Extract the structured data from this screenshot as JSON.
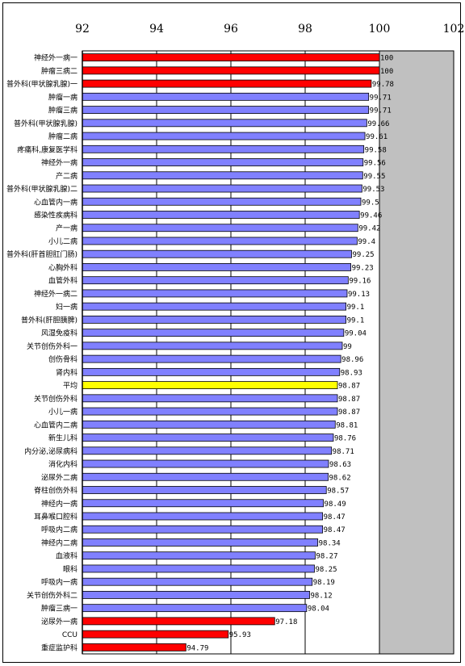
{
  "chart_data": {
    "type": "bar",
    "orientation": "horizontal",
    "title": "",
    "xlabel": "",
    "ylabel": "",
    "xlim": [
      92,
      102
    ],
    "x_ticks": [
      92,
      94,
      96,
      98,
      100,
      102
    ],
    "grid": true,
    "legend": "none",
    "colors": {
      "high_low": "#ff0000",
      "normal": "#8080ff",
      "average": "#ffff00",
      "plot_bg": "#c0c0c0"
    },
    "categories": [
      "神经外一病一",
      "肿瘤三病二",
      "普外科(甲状腺乳腺)一",
      "肿瘤一病",
      "肿瘤三病",
      "普外科(甲状腺乳腺)",
      "肿瘤二病",
      "疼痛科,康复医学科",
      "神经外一病",
      "产二病",
      "普外科(甲状腺乳腺)二",
      "心血管内一病",
      "感染性疾病科",
      "产一病",
      "小儿二病",
      "普外科(肝首胆肛门肠)",
      "心胸外科",
      "血管外科",
      "神经外一病二",
      "妇一病",
      "普外科(肝胆胰脾)",
      "风湿免疫科",
      "关节创伤外科一",
      "创伤骨科",
      "肾内科",
      "平均",
      "关节创伤外科",
      "小儿一病",
      "心血管内二病",
      "新生儿科",
      "内分泌,泌尿病科",
      "消化内科",
      "泌尿外二病",
      "脊柱创伤外科",
      "神经内一病",
      "耳鼻喉口腔科",
      "呼吸内二病",
      "神经内二病",
      "血液科",
      "眼科",
      "呼吸内一病",
      "关节创伤外科二",
      "肿瘤三病一",
      "泌尿外一病",
      "CCU",
      "重症监护科"
    ],
    "values": [
      100,
      100,
      99.78,
      99.71,
      99.71,
      99.66,
      99.61,
      99.58,
      99.56,
      99.55,
      99.53,
      99.5,
      99.46,
      99.42,
      99.4,
      99.25,
      99.23,
      99.16,
      99.13,
      99.1,
      99.1,
      99.04,
      99,
      98.96,
      98.93,
      98.87,
      98.87,
      98.87,
      98.81,
      98.76,
      98.71,
      98.63,
      98.62,
      98.57,
      98.49,
      98.47,
      98.47,
      98.34,
      98.27,
      98.25,
      98.19,
      98.12,
      98.04,
      97.18,
      95.93,
      94.79
    ],
    "value_labels": [
      "100",
      "100",
      "99.78",
      "99.71",
      "99.71",
      "99.66",
      "99.61",
      "99.58",
      "99.56",
      "99.55",
      "99.53",
      "99.5",
      "99.46",
      "99.42",
      "99.4",
      "99.25",
      "99.23",
      "99.16",
      "99.13",
      "99.1",
      "99.1",
      "99.04",
      "99",
      "98.96",
      "98.93",
      "98.87",
      "98.87",
      "98.87",
      "98.81",
      "98.76",
      "98.71",
      "98.63",
      "98.62",
      "98.57",
      "98.49",
      "98.47",
      "98.47",
      "98.34",
      "98.27",
      "98.25",
      "98.19",
      "98.12",
      "98.04",
      "97.18",
      "95.93",
      "94.79"
    ],
    "bar_color_keys": [
      "high_low",
      "high_low",
      "high_low",
      "normal",
      "normal",
      "normal",
      "normal",
      "normal",
      "normal",
      "normal",
      "normal",
      "normal",
      "normal",
      "normal",
      "normal",
      "normal",
      "normal",
      "normal",
      "normal",
      "normal",
      "normal",
      "normal",
      "normal",
      "normal",
      "normal",
      "average",
      "normal",
      "normal",
      "normal",
      "normal",
      "normal",
      "normal",
      "normal",
      "normal",
      "normal",
      "normal",
      "normal",
      "normal",
      "normal",
      "normal",
      "normal",
      "normal",
      "normal",
      "high_low",
      "high_low",
      "high_low"
    ]
  }
}
